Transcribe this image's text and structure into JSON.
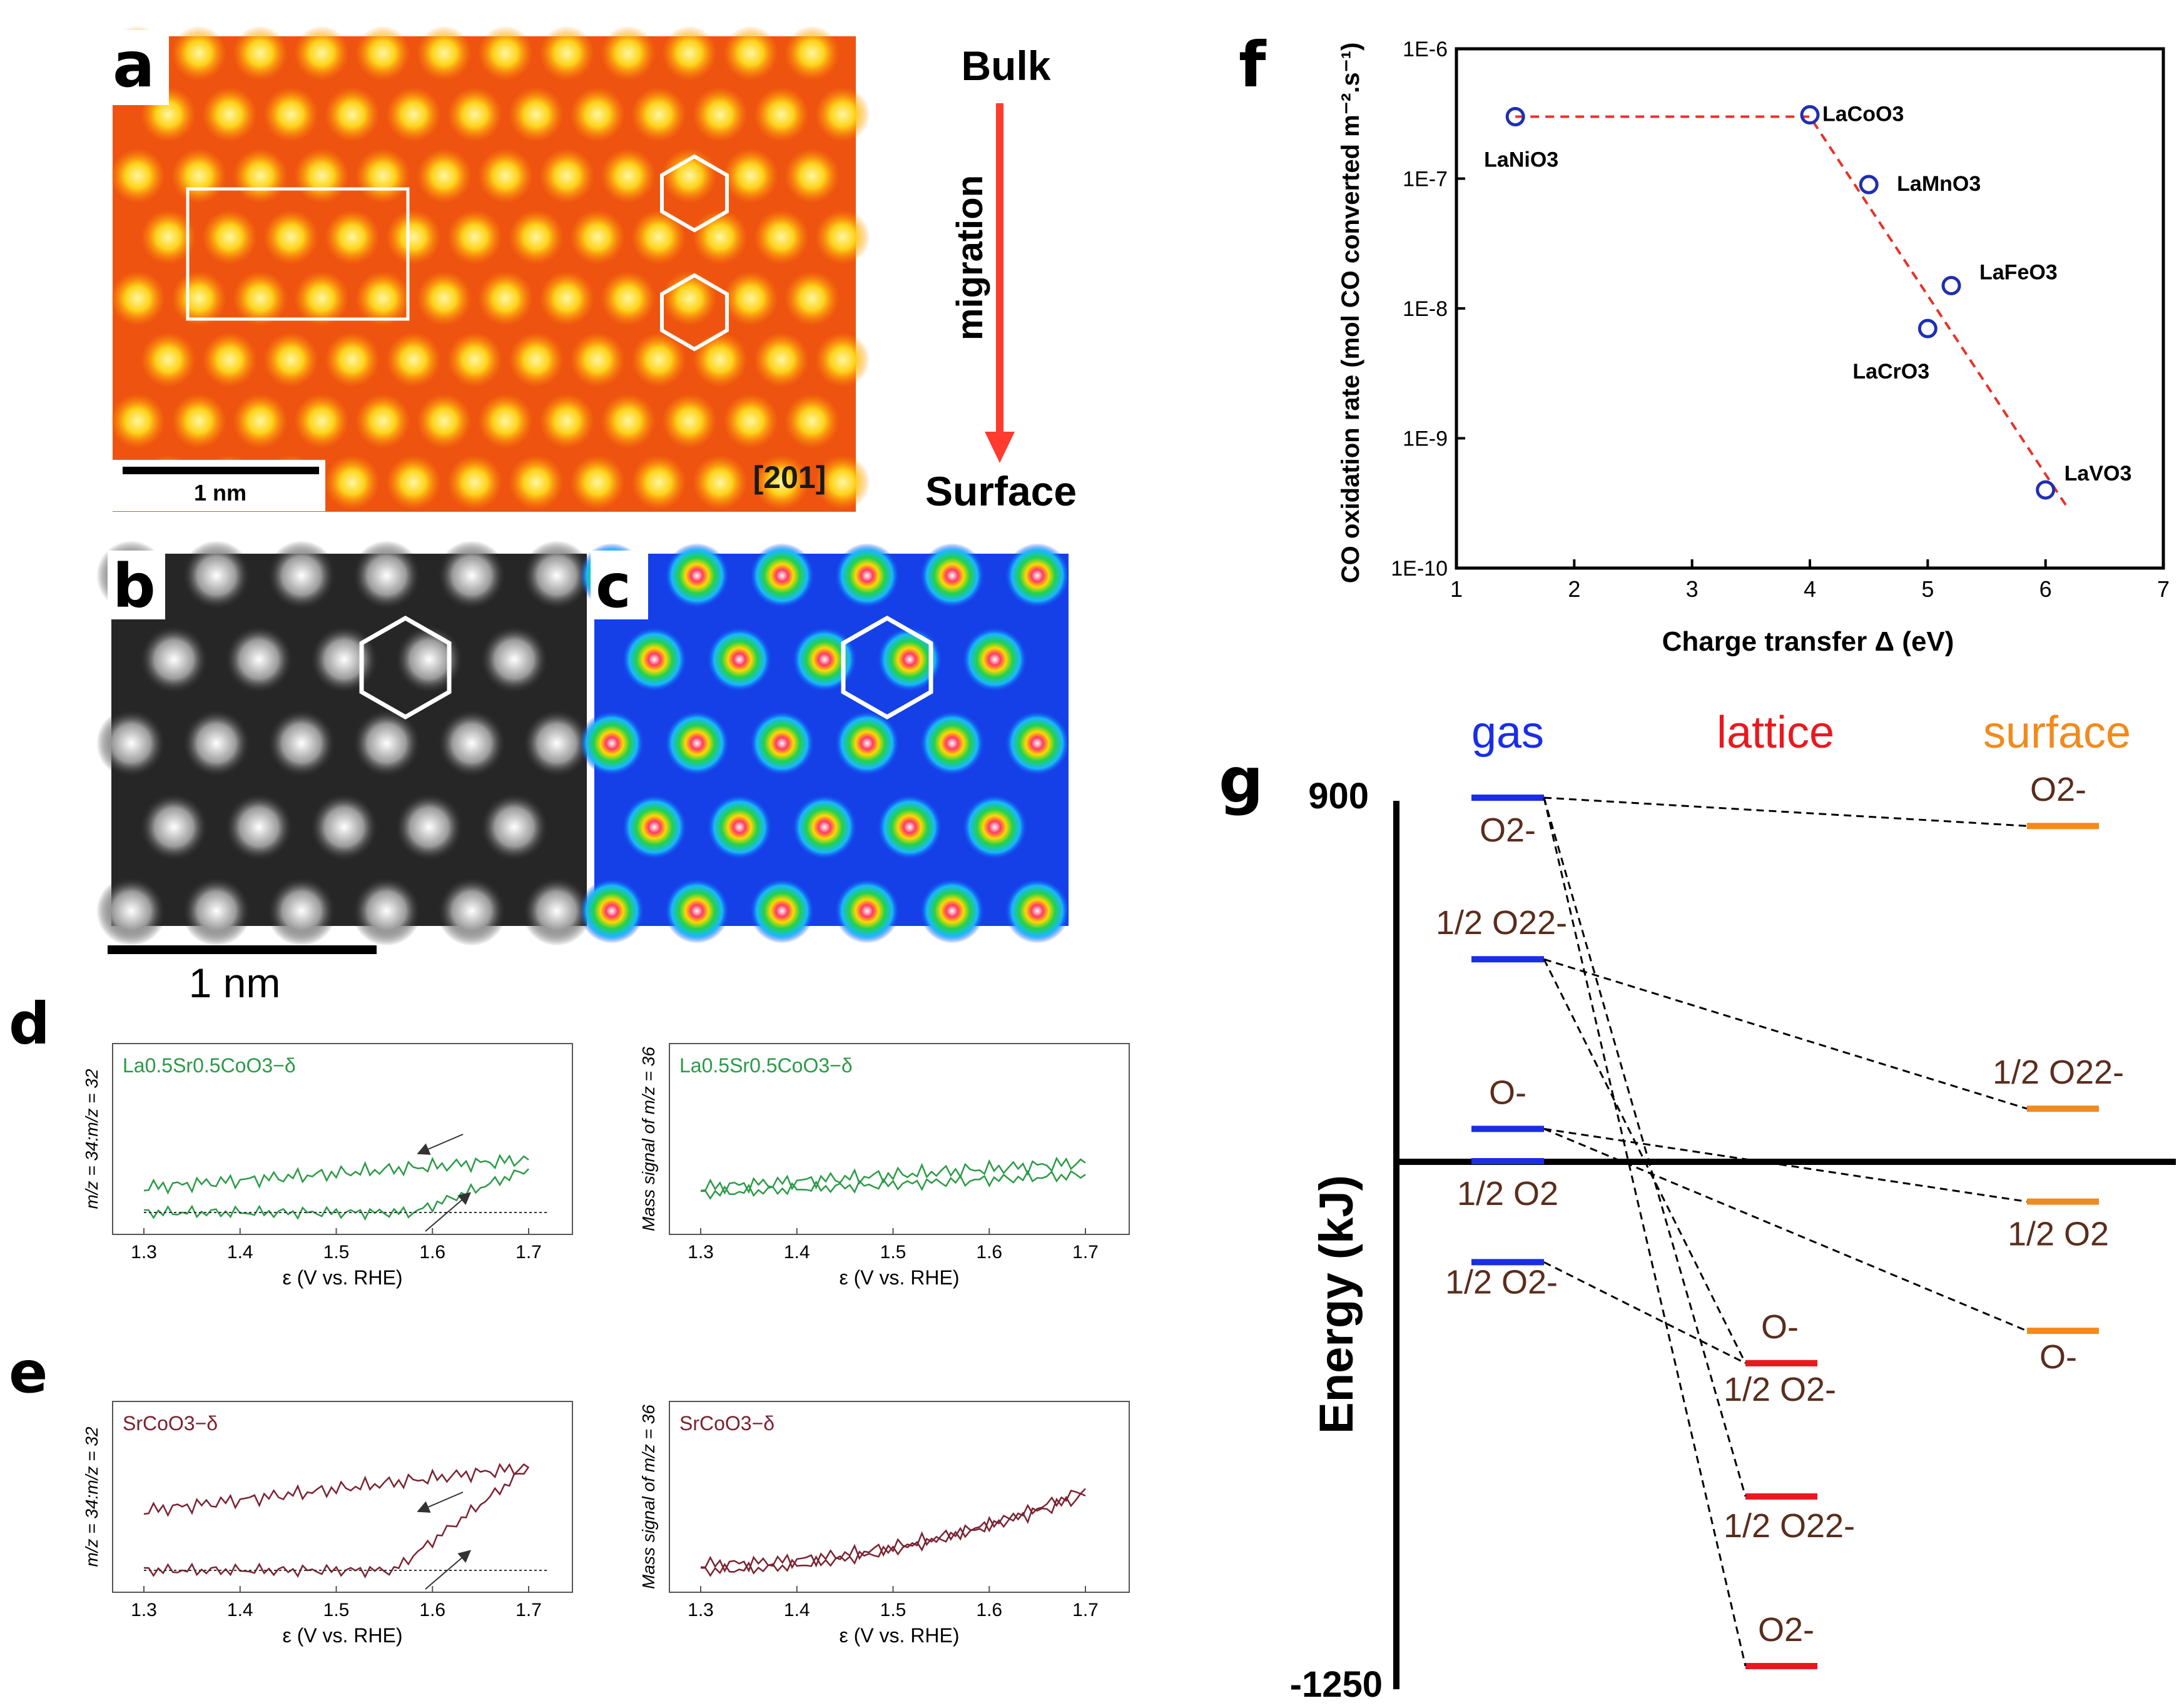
{
  "panel_labels": {
    "a": "a",
    "b": "b",
    "c": "c",
    "d": "d",
    "e": "e",
    "f": "f",
    "g": "g"
  },
  "panel_a": {
    "scalebar_label": "1 nm",
    "orientation_label": "[201]",
    "arrow_top": "Bulk",
    "arrow_mid": "migration",
    "arrow_bottom": "Surface"
  },
  "panel_bc": {
    "scalebar_label": "1 nm"
  },
  "panel_d": {
    "left_sample": "La0.5Sr0.5CoO3−δ",
    "right_sample": "La0.5Sr0.5CoO3−δ",
    "left_ylabel": "m/z = 34:m/z = 32",
    "right_ylabel": "Mass signal of m/z = 36",
    "xlabel": "ε (V vs. RHE)",
    "xticks": [
      "1.3",
      "1.4",
      "1.5",
      "1.6",
      "1.7"
    ]
  },
  "panel_e": {
    "left_sample": "SrCoO3−δ",
    "right_sample": "SrCoO3−δ",
    "left_ylabel": "m/z = 34:m/z = 32",
    "right_ylabel": "Mass signal of m/z = 36",
    "xlabel": "ε (V vs. RHE)",
    "xticks": [
      "1.3",
      "1.4",
      "1.5",
      "1.6",
      "1.7"
    ]
  },
  "chart_data": [
    {
      "panel": "f",
      "type": "scatter",
      "xlabel": "Charge transfer Δ (eV)",
      "ylabel": "CO oxidation rate (mol CO converted m⁻².s⁻¹)",
      "xlim": [
        1,
        7
      ],
      "ylim": [
        1e-10,
        1e-06
      ],
      "yscale": "log",
      "xticks": [
        "1",
        "2",
        "3",
        "4",
        "5",
        "6",
        "7"
      ],
      "yticks": [
        "1E-10",
        "1E-9",
        "1E-8",
        "1E-7",
        "1E-6"
      ],
      "points": [
        {
          "label": "LaNiO3",
          "x": 1.5,
          "y": 3e-07
        },
        {
          "label": "LaCoO3",
          "x": 4.0,
          "y": 3.1e-07
        },
        {
          "label": "LaMnO3",
          "x": 4.5,
          "y": 9e-08
        },
        {
          "label": "LaFeO3",
          "x": 5.2,
          "y": 1.5e-08
        },
        {
          "label": "LaCrO3",
          "x": 5.0,
          "y": 7e-09
        },
        {
          "label": "LaVO3",
          "x": 6.0,
          "y": 4e-10
        }
      ],
      "fit_line": {
        "x": [
          1.5,
          4.0,
          6.2
        ],
        "y": [
          3e-07,
          3e-07,
          2.8e-10
        ]
      },
      "marker_color": "#1f2fb0",
      "fit_color": "#e8312a"
    },
    {
      "panel": "g",
      "type": "energy-level diagram",
      "ylabel": "Energy (kJ)",
      "ytick_top": "900",
      "ytick_bottom": "-1250",
      "columns": {
        "gas": "gas",
        "lattice": "lattice",
        "surface": "surface"
      },
      "column_colors": {
        "gas": "#1a2ee6",
        "lattice": "#e8191e",
        "surface": "#f28a1c"
      },
      "levels": {
        "gas": [
          {
            "label": "O2-",
            "energy": 900
          },
          {
            "label": "1/2 O22-",
            "energy": 500
          },
          {
            "label": "O-",
            "energy": 80
          },
          {
            "label": "1/2 O2",
            "energy": 0
          },
          {
            "label": "1/2 O2-",
            "energy": -250
          }
        ],
        "lattice": [
          {
            "label": "O-",
            "energy": -500
          },
          {
            "label": "1/2 O2-",
            "energy": -500
          },
          {
            "label": "1/2 O22-",
            "energy": -830
          },
          {
            "label": "O2-",
            "energy": -1250
          }
        ],
        "surface": [
          {
            "label": "O2-",
            "energy": 830
          },
          {
            "label": "1/2 O22-",
            "energy": 130
          },
          {
            "label": "1/2 O2",
            "energy": -100
          },
          {
            "label": "O-",
            "energy": -420
          }
        ]
      }
    }
  ]
}
